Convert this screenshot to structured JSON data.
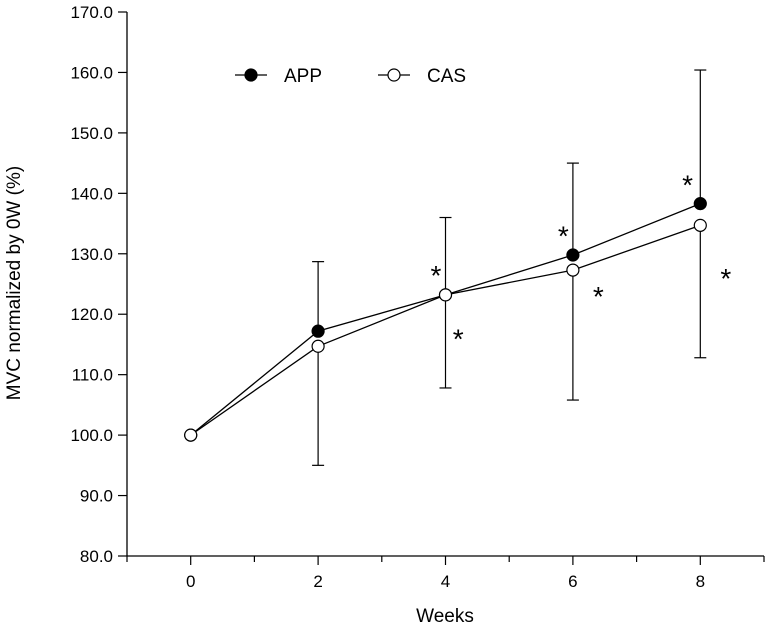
{
  "chart_data": {
    "type": "line",
    "title": "",
    "xlabel": "Weeks",
    "ylabel": "MVC normalized by 0W (%)",
    "x": [
      0,
      2,
      4,
      6,
      8
    ],
    "xlim": [
      -1,
      9
    ],
    "ylim": [
      80,
      170
    ],
    "x_ticks": [
      0,
      2,
      4,
      6,
      8
    ],
    "x_minor_ticks": [
      -1,
      1,
      3,
      5,
      7,
      9
    ],
    "y_ticks": [
      80,
      90,
      100,
      110,
      120,
      130,
      140,
      150,
      160,
      170
    ],
    "y_tick_labels": [
      "80.0",
      "90.0",
      "100.0",
      "110.0",
      "120.0",
      "130.0",
      "140.0",
      "150.0",
      "160.0",
      "170.0"
    ],
    "x_tick_labels": [
      "0",
      "2",
      "4",
      "6",
      "8"
    ],
    "legend_position": "top-left",
    "grid": false,
    "series": [
      {
        "name": "APP",
        "marker": "filled-circle",
        "values": [
          100.0,
          117.2,
          123.2,
          129.8,
          138.3
        ],
        "error_upper": [
          null,
          128.7,
          null,
          145.0,
          160.4
        ],
        "error_lower": [
          null,
          null,
          107.8,
          null,
          null
        ]
      },
      {
        "name": "CAS",
        "marker": "open-circle",
        "values": [
          100.0,
          114.7,
          123.2,
          127.3,
          134.7
        ],
        "error_upper": [
          null,
          null,
          136.0,
          null,
          null
        ],
        "error_lower": [
          null,
          95.0,
          null,
          105.8,
          112.8
        ]
      }
    ],
    "annotations": [
      {
        "text": "*",
        "x": 3.85,
        "y": 126.5
      },
      {
        "text": "*",
        "x": 4.2,
        "y": 116.0
      },
      {
        "text": "*",
        "x": 5.85,
        "y": 133.0
      },
      {
        "text": "*",
        "x": 6.4,
        "y": 123.0
      },
      {
        "text": "*",
        "x": 7.8,
        "y": 141.5
      },
      {
        "text": "*",
        "x": 8.4,
        "y": 126.0
      }
    ]
  }
}
